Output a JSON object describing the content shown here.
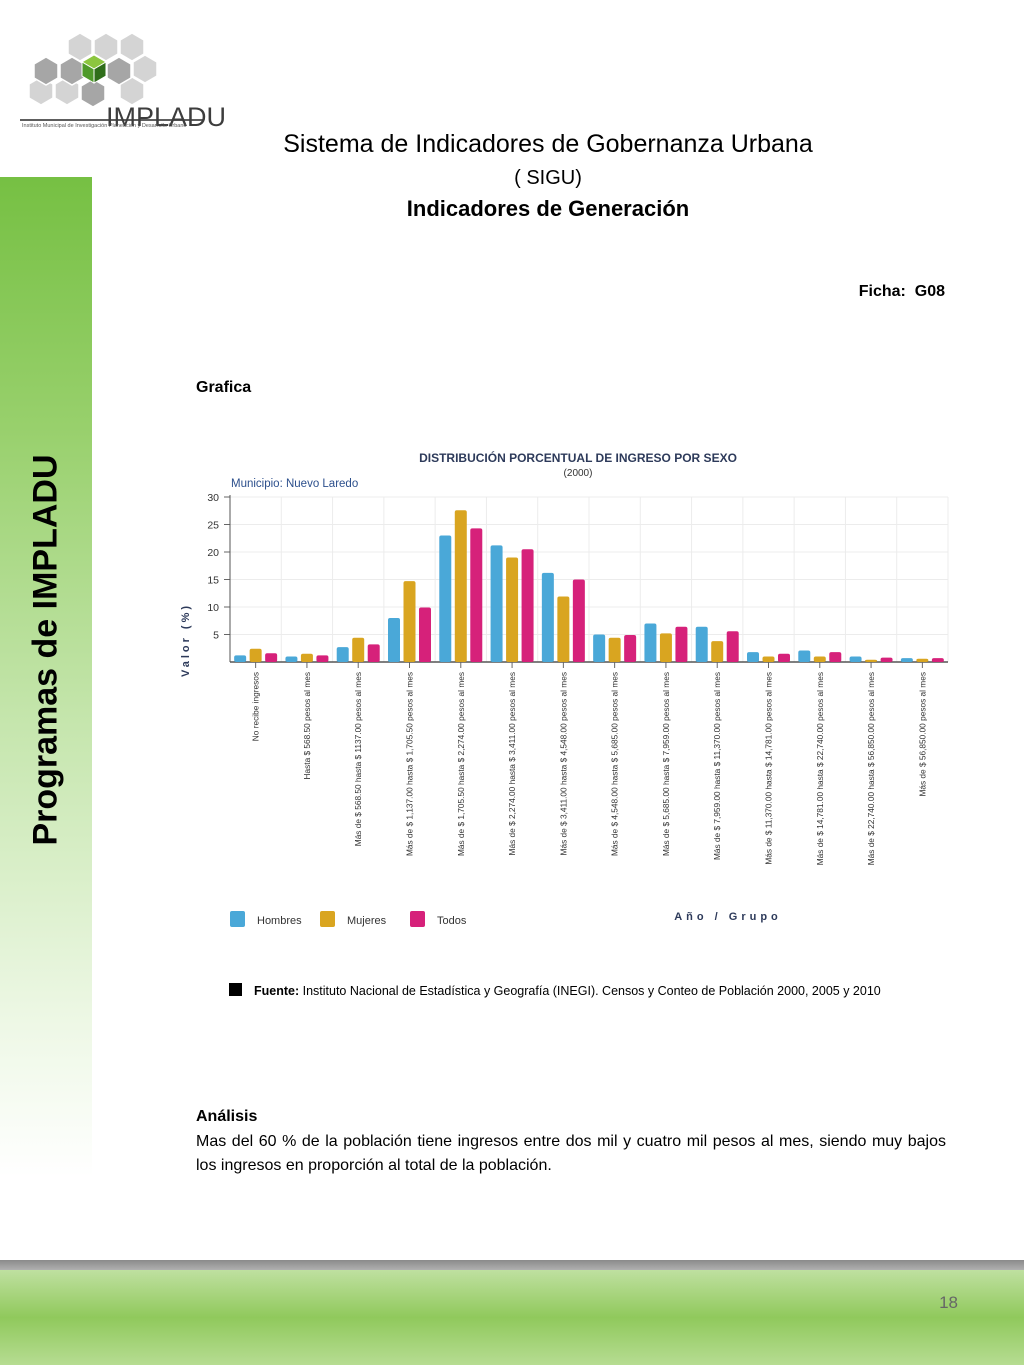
{
  "logo": {
    "name": "IMPLADU",
    "subtitle": "Instituto Municipal de Investigación Planeación y Desarrollo Urbano"
  },
  "sidebar": {
    "title": "Programas de  IMPLADU"
  },
  "header": {
    "title": "Sistema de Indicadores de Gobernanza Urbana",
    "subtitle": "( SIGU)",
    "heading": "Indicadores de Generación"
  },
  "ficha": "Ficha:  G08",
  "grafica_label": "Grafica",
  "chart_data": {
    "type": "bar",
    "title": "DISTRIBUCIÓN PORCENTUAL DE INGRESO POR SEXO",
    "subtitle": "(2000)",
    "annotation": "Municipio: Nuevo Laredo",
    "xlabel": "Año / Grupo",
    "ylabel": "Valor (%)",
    "ylim": [
      0,
      30
    ],
    "yticks": [
      5,
      10,
      15,
      20,
      25,
      30
    ],
    "grid": true,
    "legend_position": "bottom-left",
    "categories": [
      "No recibe ingresos",
      "Hasta $ 568.50 pesos al mes",
      "Más de $ 568.50 hasta $ 1137.00 pesos al mes",
      "Más de $ 1,137.00 hasta $ 1,705.50 pesos al mes",
      "Más de $ 1,705.50 hasta $ 2,274.00 pesos al mes",
      "Más de $ 2,274.00 hasta $ 3,411.00 pesos al mes",
      "Más de $ 3,411.00 hasta $ 4,548.00 pesos al mes",
      "Más de $ 4,548.00 hasta $ 5,685.00 pesos al mes",
      "Más de $ 5,685.00 hasta $ 7,959.00 pesos al mes",
      "Más de $ 7,959.00 hasta $ 11,370.00 pesos al mes",
      "Más de $ 11,370.00 hasta $ 14,781.00 pesos al mes",
      "Más de $ 14,781.00 hasta $ 22,740.00 pesos al mes",
      "Más de $ 22,740.00 hasta $ 56,850.00 pesos al mes",
      "Más de $ 56,850.00 pesos al mes"
    ],
    "series": [
      {
        "name": "Hombres",
        "color": "#4aa8d8",
        "values": [
          1.2,
          1.0,
          2.7,
          8.0,
          23.0,
          21.2,
          16.2,
          5.0,
          7.0,
          6.4,
          1.8,
          2.1,
          1.0,
          0.7
        ]
      },
      {
        "name": "Mujeres",
        "color": "#d9a520",
        "values": [
          2.4,
          1.5,
          4.4,
          14.7,
          27.6,
          19.0,
          11.9,
          4.4,
          5.2,
          3.8,
          1.0,
          1.0,
          0.4,
          0.6
        ]
      },
      {
        "name": "Todos",
        "color": "#d6217a",
        "values": [
          1.6,
          1.2,
          3.2,
          9.9,
          24.3,
          20.5,
          15.0,
          4.9,
          6.4,
          5.6,
          1.5,
          1.8,
          0.8,
          0.7
        ]
      }
    ]
  },
  "fuente": {
    "label": "Fuente:",
    "text": " Instituto Nacional de Estadística y Geografía (INEGI). Censos y Conteo de Población 2000, 2005 y 2010"
  },
  "analisis": {
    "heading": "Análisis",
    "text": "Mas del 60 % de la población tiene ingresos entre dos mil y cuatro mil pesos al mes, siendo muy bajos los ingresos en proporción al total de la población."
  },
  "page_number": "18"
}
